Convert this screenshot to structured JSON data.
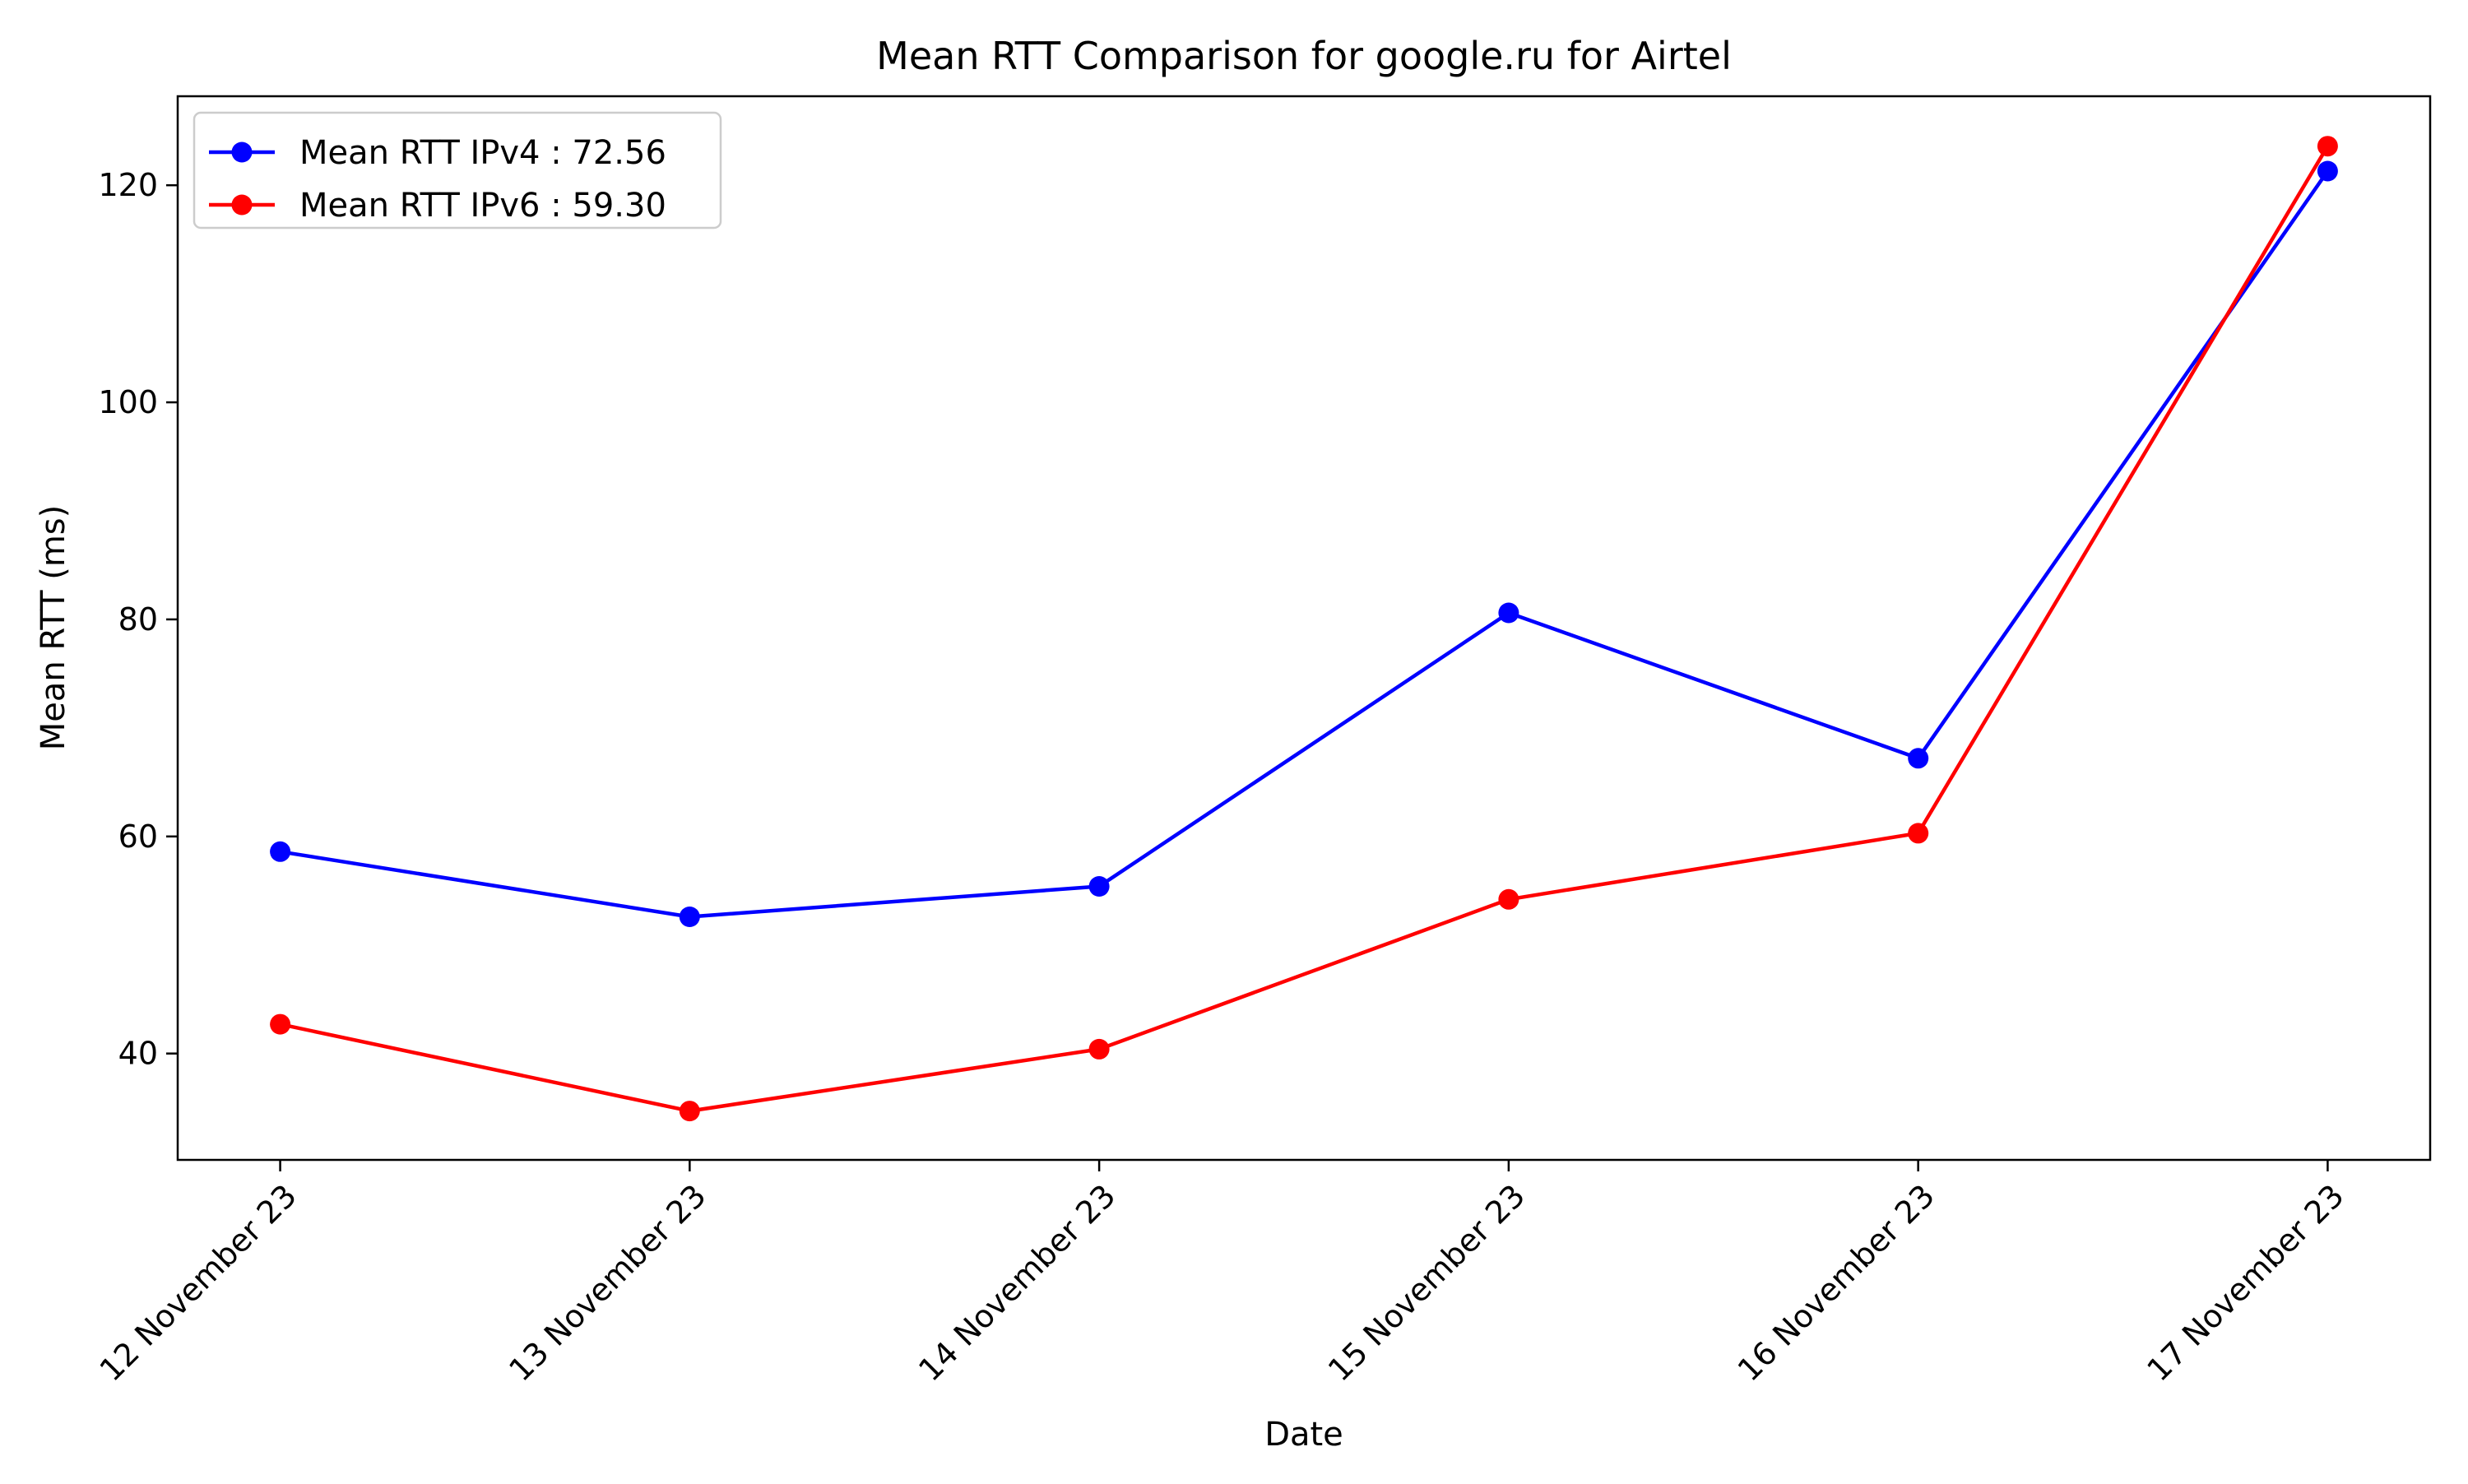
{
  "chart_data": {
    "type": "line",
    "title": "Mean RTT Comparison for google.ru for Airtel",
    "xlabel": "Date",
    "ylabel": "Mean RTT (ms)",
    "categories": [
      "12 November 23",
      "13 November 23",
      "14 November 23",
      "15 November 23",
      "16 November 23",
      "17 November 23"
    ],
    "ylim": [
      30.2,
      128.2
    ],
    "yticks": [
      40,
      60,
      80,
      100,
      120
    ],
    "grid": false,
    "legend_position": "top-left",
    "series": [
      {
        "name": "Mean RTT IPv4 : 72.56",
        "color": "#0000ff",
        "marker": "circle",
        "values": [
          58.6,
          52.6,
          55.4,
          80.6,
          67.2,
          121.3
        ]
      },
      {
        "name": "Mean RTT IPv6 : 59.30",
        "color": "#ff0000",
        "marker": "circle",
        "values": [
          42.7,
          34.7,
          40.4,
          54.2,
          60.3,
          123.6
        ]
      }
    ]
  }
}
